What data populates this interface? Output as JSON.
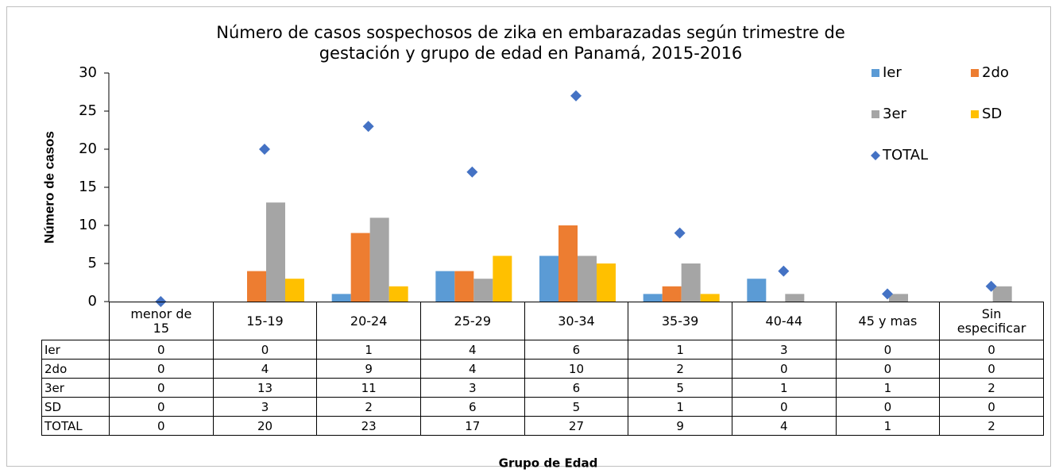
{
  "chart_data": {
    "type": "bar",
    "title": [
      "Número de casos sospechosos de zika en embarazadas según trimestre de",
      "gestación y grupo de edad en Panamá, 2015-2016"
    ],
    "y_label": "Número de casos",
    "x_label": "Grupo de Edad",
    "categories": [
      "menor de\n15",
      "15-19",
      "20-24",
      "25-29",
      "30-34",
      "35-39",
      "40-44",
      "45 y mas",
      "Sin\nespecificar"
    ],
    "series": [
      {
        "name": "Ier",
        "type": "bar",
        "color": "#5b9bd5",
        "values": [
          0,
          0,
          1,
          4,
          6,
          1,
          3,
          0,
          0
        ]
      },
      {
        "name": "2do",
        "type": "bar",
        "color": "#ed7d31",
        "values": [
          0,
          4,
          9,
          4,
          10,
          2,
          0,
          0,
          0
        ]
      },
      {
        "name": "3er",
        "type": "bar",
        "color": "#a5a5a5",
        "values": [
          0,
          13,
          11,
          3,
          6,
          5,
          1,
          1,
          2
        ]
      },
      {
        "name": "SD",
        "type": "bar",
        "color": "#ffc000",
        "values": [
          0,
          3,
          2,
          6,
          5,
          1,
          0,
          0,
          0
        ]
      },
      {
        "name": "TOTAL",
        "type": "scatter",
        "color": "#4472c4",
        "values": [
          0,
          20,
          23,
          17,
          27,
          9,
          4,
          1,
          2
        ]
      }
    ],
    "ylim": [
      0,
      30
    ],
    "yticks": [
      0,
      5,
      10,
      15,
      20,
      25,
      30
    ],
    "grid": false,
    "legend": "top-right",
    "data_table": true
  }
}
